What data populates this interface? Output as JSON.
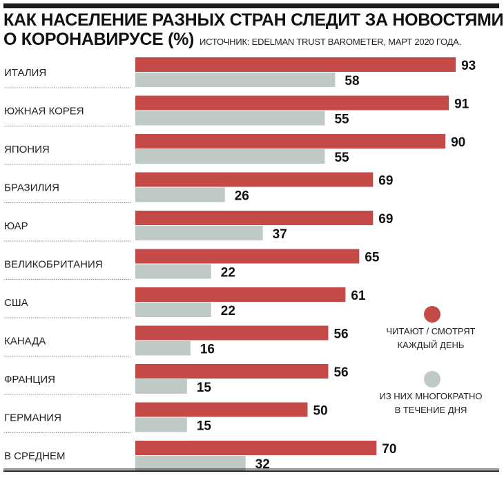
{
  "header": {
    "title_line1": "КАК НАСЕЛЕНИЕ РАЗНЫХ СТРАН СЛЕДИТ ЗА НОВОСТЯМИ",
    "title_line2": "О КОРОНАВИРУСЕ (%)",
    "source": "ИСТОЧНИК: EDELMAN TRUST BAROMETER, МАРТ 2020 ГОДА."
  },
  "colors": {
    "daily": "#c44a48",
    "multiple": "#bfcac6"
  },
  "chart_data": {
    "type": "bar",
    "orientation": "horizontal",
    "title": "КАК НАСЕЛЕНИЕ РАЗНЫХ СТРАН СЛЕДИТ ЗА НОВОСТЯМИ О КОРОНАВИРУСЕ (%)",
    "xlabel": "",
    "ylabel": "",
    "xlim": [
      0,
      100
    ],
    "grid": false,
    "legend_position": "right",
    "categories": [
      "ИТАЛИЯ",
      "ЮЖНАЯ КОРЕЯ",
      "ЯПОНИЯ",
      "БРАЗИЛИЯ",
      "ЮАР",
      "ВЕЛИКОБРИТАНИЯ",
      "США",
      "КАНАДА",
      "ФРАНЦИЯ",
      "ГЕРМАНИЯ",
      "В СРЕДНЕМ"
    ],
    "series": [
      {
        "name": "ЧИТАЮТ / СМОТРЯТ КАЖДЫЙ ДЕНЬ",
        "legend_lines": [
          "ЧИТАЮТ / СМОТРЯТ",
          "КАЖДЫЙ ДЕНЬ"
        ],
        "color": "#c44a48",
        "values": [
          93,
          91,
          90,
          69,
          69,
          65,
          61,
          56,
          56,
          50,
          70
        ]
      },
      {
        "name": "ИЗ НИХ МНОГОКРАТНО В ТЕЧЕНИЕ ДНЯ",
        "legend_lines": [
          "ИЗ НИХ МНОГОКРАТНО",
          "В ТЕЧЕНИЕ ДНЯ"
        ],
        "color": "#bfcac6",
        "values": [
          58,
          55,
          55,
          26,
          37,
          22,
          22,
          16,
          15,
          15,
          32
        ]
      }
    ]
  }
}
